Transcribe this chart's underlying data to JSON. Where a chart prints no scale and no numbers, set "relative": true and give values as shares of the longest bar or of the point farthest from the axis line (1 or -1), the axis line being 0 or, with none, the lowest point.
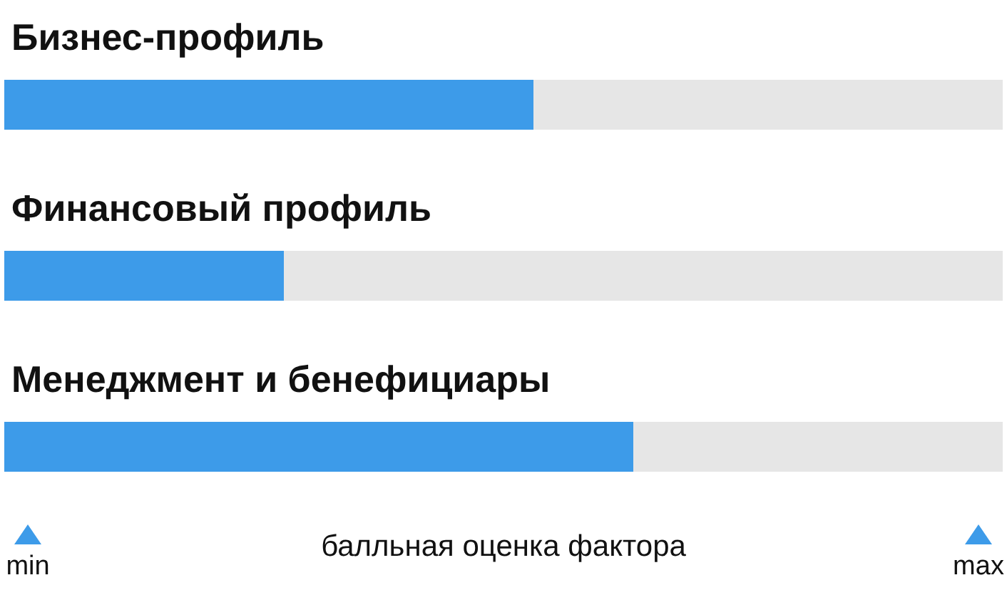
{
  "chart_data": {
    "type": "bar",
    "orientation": "horizontal",
    "stacked": true,
    "relative": true,
    "categories": [
      "Бизнес-профиль",
      "Финансовый профиль",
      "Менеджмент и бенефициары"
    ],
    "series": [
      {
        "color": "#3d9be9",
        "values": [
          0.53,
          0.28,
          0.63
        ]
      },
      {
        "color": "#e6e6e6",
        "values": [
          0.47,
          0.72,
          0.37
        ]
      }
    ],
    "xlabel": "балльная оценка фактора",
    "annotations": [
      "min",
      "max"
    ]
  }
}
